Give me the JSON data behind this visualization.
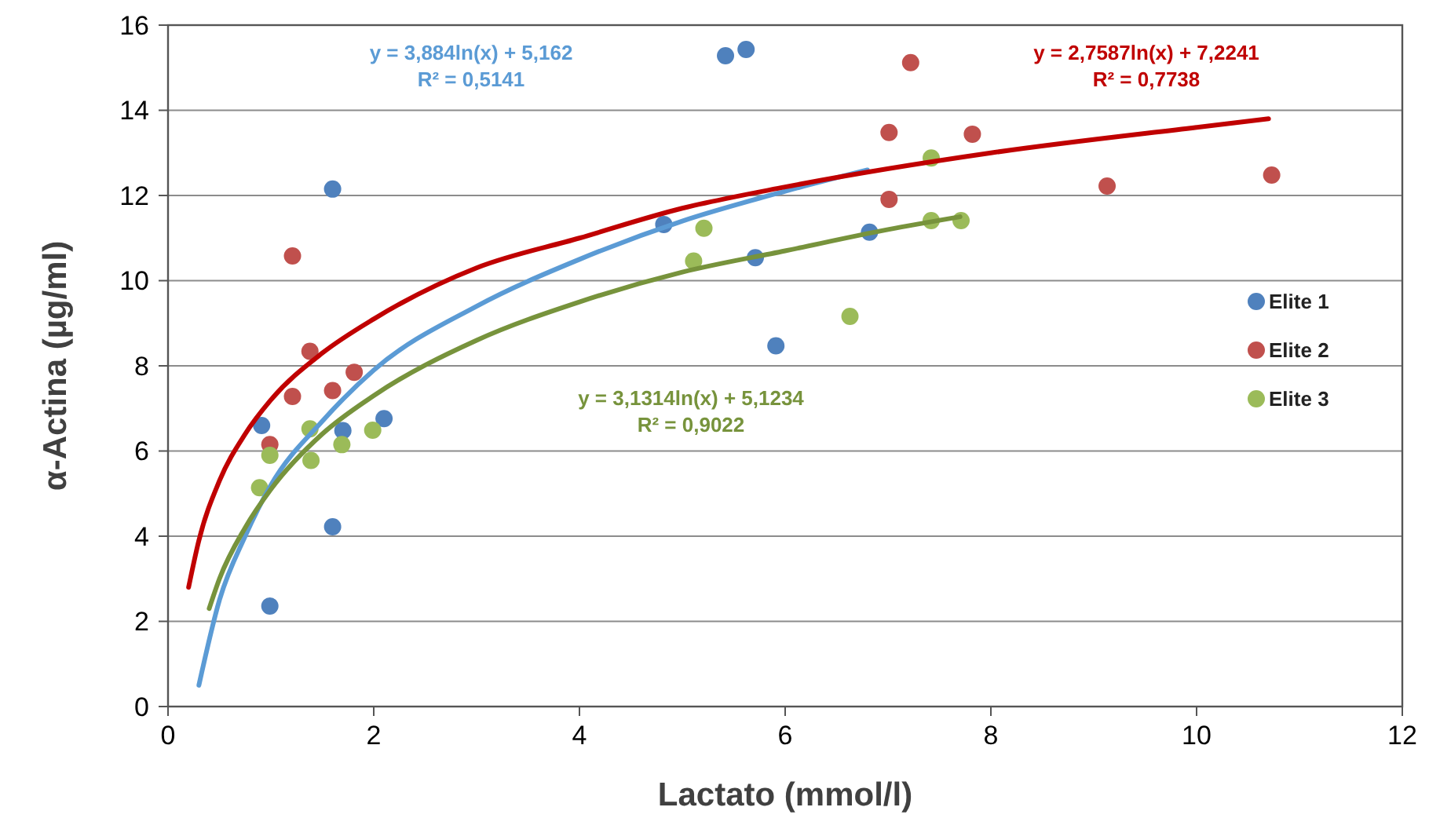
{
  "chart_data": {
    "type": "scatter",
    "xlabel": "Lactato (mmol/l)",
    "ylabel": "α-Actina (µg/ml)",
    "xlim": [
      0,
      12
    ],
    "xticks": [
      0,
      2,
      4,
      6,
      8,
      10,
      12
    ],
    "ylim": [
      0,
      16
    ],
    "yticks": [
      0,
      2,
      4,
      6,
      8,
      10,
      12,
      14,
      16
    ],
    "grid": "y",
    "legend": "right",
    "marker": "circle",
    "annotations": [
      "y = 3,884ln(x) + 5,162\nR² = 0,5141",
      "y = 2,7587ln(x) + 7,2241\nR² = 0,7738",
      "y = 3,1314ln(x) + 5,1234\nR² = 0,9022"
    ],
    "series": [
      {
        "name": "Elite 1",
        "color": "#4f81bd",
        "x": [
          1.6,
          0.91,
          1.7,
          2.1,
          1.6,
          0.99,
          5.42,
          5.62,
          4.82,
          5.71,
          6.82,
          5.91
        ],
        "values": [
          12.15,
          6.6,
          6.48,
          6.76,
          4.22,
          2.36,
          15.28,
          15.43,
          11.32,
          10.54,
          11.14,
          8.47
        ]
      },
      {
        "name": "Elite 2",
        "color": "#c0504d",
        "x": [
          1.21,
          1.38,
          1.21,
          1.6,
          1.81,
          0.99,
          7.22,
          7.01,
          7.82,
          7.01,
          9.13,
          10.73
        ],
        "values": [
          10.58,
          8.34,
          7.28,
          7.42,
          7.85,
          6.15,
          15.12,
          13.48,
          13.44,
          11.91,
          12.22,
          12.48
        ]
      },
      {
        "name": "Elite 3",
        "color": "#9bbb59",
        "x": [
          1.38,
          0.99,
          1.39,
          1.69,
          1.99,
          0.89,
          7.42,
          5.21,
          5.11,
          7.42,
          7.71,
          6.63
        ],
        "values": [
          6.52,
          5.9,
          5.78,
          6.15,
          6.49,
          5.14,
          12.88,
          11.23,
          10.46,
          11.41,
          11.41,
          9.16
        ]
      },
      {
        "type": "line",
        "marker": "none",
        "color": "#5b9bd5",
        "x": [
          0.3,
          0.5,
          0.75,
          1,
          1.5,
          2,
          3,
          4,
          5,
          6,
          6.8
        ],
        "values": [
          0.5,
          2.5,
          4.0,
          5.2,
          6.7,
          7.9,
          9.4,
          10.5,
          11.4,
          12.1,
          12.6
        ]
      },
      {
        "type": "line",
        "marker": "none",
        "color": "#c00000",
        "x": [
          0.2,
          0.3,
          0.5,
          0.75,
          1,
          1.5,
          2,
          3,
          4,
          5,
          6,
          8,
          10,
          10.7
        ],
        "values": [
          2.8,
          3.9,
          5.3,
          6.4,
          7.2,
          8.3,
          9.1,
          10.3,
          11.0,
          11.7,
          12.2,
          13.0,
          13.6,
          13.8
        ]
      },
      {
        "type": "line",
        "marker": "none",
        "color": "#77933c",
        "x": [
          0.4,
          0.5,
          0.75,
          1,
          1.5,
          2,
          3,
          4,
          5,
          6,
          7,
          7.7
        ],
        "values": [
          2.3,
          3.0,
          4.2,
          5.1,
          6.4,
          7.3,
          8.6,
          9.5,
          10.2,
          10.7,
          11.2,
          11.5
        ]
      }
    ]
  }
}
